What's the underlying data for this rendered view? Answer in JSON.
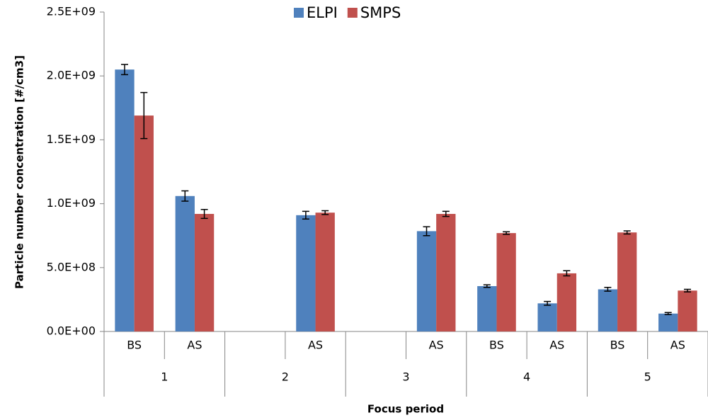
{
  "chart_data": {
    "type": "bar",
    "y_label": "Particle number concentration [#/cm3]",
    "x_label": "Focus period",
    "categories": [
      "BS",
      "AS",
      null,
      "AS",
      null,
      "AS",
      "BS",
      "AS",
      "BS",
      "AS"
    ],
    "groups": [
      "1",
      "2",
      "3",
      "4",
      "5"
    ],
    "series": [
      {
        "name": "ELPI",
        "color": "#4f81bd",
        "values": [
          2050000000,
          1060000000,
          null,
          910000000,
          null,
          785000000,
          355000000,
          220000000,
          330000000,
          140000000
        ],
        "errors": [
          40000000,
          40000000,
          null,
          30000000,
          null,
          35000000,
          10000000,
          15000000,
          15000000,
          8000000
        ]
      },
      {
        "name": "SMPS",
        "color": "#c0504d",
        "values": [
          1690000000,
          920000000,
          null,
          930000000,
          null,
          920000000,
          770000000,
          455000000,
          775000000,
          320000000
        ],
        "errors": [
          180000000,
          35000000,
          null,
          15000000,
          null,
          20000000,
          10000000,
          20000000,
          12000000,
          10000000
        ]
      }
    ],
    "ylim": [
      0,
      2500000000
    ],
    "yticks": [
      {
        "value": 0,
        "label": "0.0E+00"
      },
      {
        "value": 500000000,
        "label": "5.0E+08"
      },
      {
        "value": 1000000000,
        "label": "1.0E+09"
      },
      {
        "value": 1500000000,
        "label": "1.5E+09"
      },
      {
        "value": 2000000000,
        "label": "2.0E+09"
      },
      {
        "value": 2500000000,
        "label": "2.5E+09"
      }
    ],
    "legend": "top"
  }
}
